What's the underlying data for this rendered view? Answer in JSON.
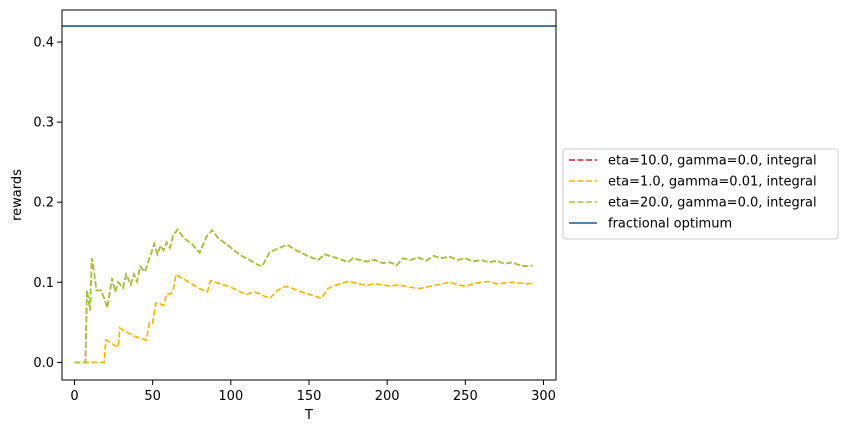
{
  "chart_data": {
    "type": "line",
    "title": "",
    "xlabel": "T",
    "ylabel": "rewards",
    "xlim": [
      -8,
      308
    ],
    "ylim": [
      -0.022,
      0.44
    ],
    "xticks": [
      0,
      50,
      100,
      150,
      200,
      250,
      300
    ],
    "yticks": [
      0.0,
      0.1,
      0.2,
      0.3,
      0.4
    ],
    "grid": false,
    "legend_position": "center-right, outside plot",
    "series": [
      {
        "name": "eta=10.0, gamma=0.0, integral",
        "style": "dashed",
        "color": "#e31a1c",
        "x": [
          0,
          7,
          8,
          10,
          11,
          12,
          14,
          17,
          19,
          21,
          24,
          26,
          28,
          31,
          33,
          36,
          38,
          40,
          42,
          45,
          47,
          49,
          51,
          53,
          55,
          57,
          59,
          61,
          63,
          66,
          70,
          75,
          80,
          85,
          88,
          92,
          97,
          102,
          107,
          112,
          117,
          120,
          125,
          130,
          136,
          140,
          145,
          150,
          156,
          160,
          165,
          170,
          175,
          178,
          182,
          187,
          192,
          197,
          202,
          206,
          210,
          215,
          220,
          225,
          230,
          234,
          240,
          245,
          250,
          255,
          260,
          265,
          270,
          275,
          280,
          285,
          290,
          293
        ],
        "y": [
          0,
          0,
          0.09,
          0.065,
          0.13,
          0.12,
          0.09,
          0.09,
          0.08,
          0.068,
          0.105,
          0.088,
          0.1,
          0.093,
          0.11,
          0.097,
          0.11,
          0.101,
          0.12,
          0.113,
          0.125,
          0.136,
          0.148,
          0.135,
          0.146,
          0.14,
          0.15,
          0.143,
          0.158,
          0.166,
          0.155,
          0.148,
          0.137,
          0.159,
          0.165,
          0.155,
          0.148,
          0.14,
          0.133,
          0.128,
          0.122,
          0.12,
          0.138,
          0.142,
          0.147,
          0.142,
          0.137,
          0.132,
          0.128,
          0.135,
          0.132,
          0.129,
          0.125,
          0.13,
          0.128,
          0.126,
          0.128,
          0.124,
          0.125,
          0.121,
          0.13,
          0.128,
          0.131,
          0.127,
          0.133,
          0.13,
          0.132,
          0.128,
          0.13,
          0.126,
          0.128,
          0.125,
          0.127,
          0.123,
          0.125,
          0.121,
          0.12,
          0.121
        ]
      },
      {
        "name": "eta=1.0, gamma=0.01, integral",
        "style": "dashed",
        "color": "#ffb000",
        "x": [
          0,
          8,
          10,
          13,
          16,
          18,
          19,
          20,
          23,
          25,
          27,
          28,
          29,
          31,
          33,
          35,
          38,
          41,
          44,
          46,
          48,
          50,
          52,
          54,
          55,
          57,
          59,
          61,
          63,
          65,
          67,
          70,
          75,
          80,
          85,
          87,
          90,
          95,
          100,
          105,
          110,
          115,
          118,
          121,
          125,
          130,
          135,
          140,
          145,
          150,
          155,
          158,
          162,
          165,
          170,
          175,
          178,
          182,
          187,
          192,
          197,
          202,
          207,
          212,
          217,
          220,
          225,
          230,
          235,
          240,
          245,
          250,
          255,
          260,
          265,
          270,
          275,
          280,
          285,
          290,
          293
        ],
        "y": [
          0,
          0,
          0,
          0,
          0,
          0,
          0,
          0.028,
          0.025,
          0.022,
          0.02,
          0.019,
          0.043,
          0.04,
          0.038,
          0.036,
          0.033,
          0.031,
          0.029,
          0.028,
          0.05,
          0.049,
          0.074,
          0.072,
          0.073,
          0.071,
          0.086,
          0.085,
          0.089,
          0.11,
          0.107,
          0.104,
          0.098,
          0.092,
          0.088,
          0.102,
          0.1,
          0.097,
          0.094,
          0.089,
          0.085,
          0.088,
          0.086,
          0.083,
          0.08,
          0.09,
          0.095,
          0.092,
          0.088,
          0.085,
          0.082,
          0.08,
          0.092,
          0.095,
          0.098,
          0.101,
          0.1,
          0.098,
          0.096,
          0.098,
          0.097,
          0.095,
          0.097,
          0.095,
          0.093,
          0.092,
          0.094,
          0.096,
          0.098,
          0.1,
          0.097,
          0.095,
          0.098,
          0.1,
          0.101,
          0.098,
          0.099,
          0.1,
          0.099,
          0.098,
          0.099
        ]
      },
      {
        "name": "eta=20.0, gamma=0.0, integral",
        "style": "dashed",
        "color": "#9acd32",
        "x": [
          0,
          7,
          8,
          10,
          11,
          12,
          14,
          17,
          19,
          21,
          24,
          26,
          28,
          31,
          33,
          36,
          38,
          40,
          42,
          45,
          47,
          49,
          51,
          53,
          55,
          57,
          59,
          61,
          63,
          66,
          70,
          75,
          80,
          85,
          88,
          92,
          97,
          102,
          107,
          112,
          117,
          120,
          125,
          130,
          136,
          140,
          145,
          150,
          156,
          160,
          165,
          170,
          175,
          178,
          182,
          187,
          192,
          197,
          202,
          206,
          210,
          215,
          220,
          225,
          230,
          234,
          240,
          245,
          250,
          255,
          260,
          265,
          270,
          275,
          280,
          285,
          290,
          293
        ],
        "y": [
          0,
          0,
          0.09,
          0.065,
          0.13,
          0.12,
          0.09,
          0.09,
          0.08,
          0.068,
          0.105,
          0.088,
          0.1,
          0.093,
          0.11,
          0.097,
          0.11,
          0.101,
          0.12,
          0.113,
          0.125,
          0.136,
          0.148,
          0.135,
          0.146,
          0.14,
          0.15,
          0.143,
          0.158,
          0.166,
          0.155,
          0.148,
          0.137,
          0.159,
          0.165,
          0.155,
          0.148,
          0.14,
          0.133,
          0.128,
          0.122,
          0.12,
          0.138,
          0.142,
          0.147,
          0.142,
          0.137,
          0.132,
          0.128,
          0.135,
          0.132,
          0.129,
          0.125,
          0.13,
          0.128,
          0.126,
          0.128,
          0.124,
          0.125,
          0.121,
          0.13,
          0.128,
          0.131,
          0.127,
          0.133,
          0.13,
          0.132,
          0.128,
          0.13,
          0.126,
          0.128,
          0.125,
          0.127,
          0.123,
          0.125,
          0.121,
          0.12,
          0.121
        ]
      },
      {
        "name": "fractional optimum",
        "style": "solid",
        "color": "#1f5c99",
        "horizontal_value": 0.42
      }
    ]
  }
}
